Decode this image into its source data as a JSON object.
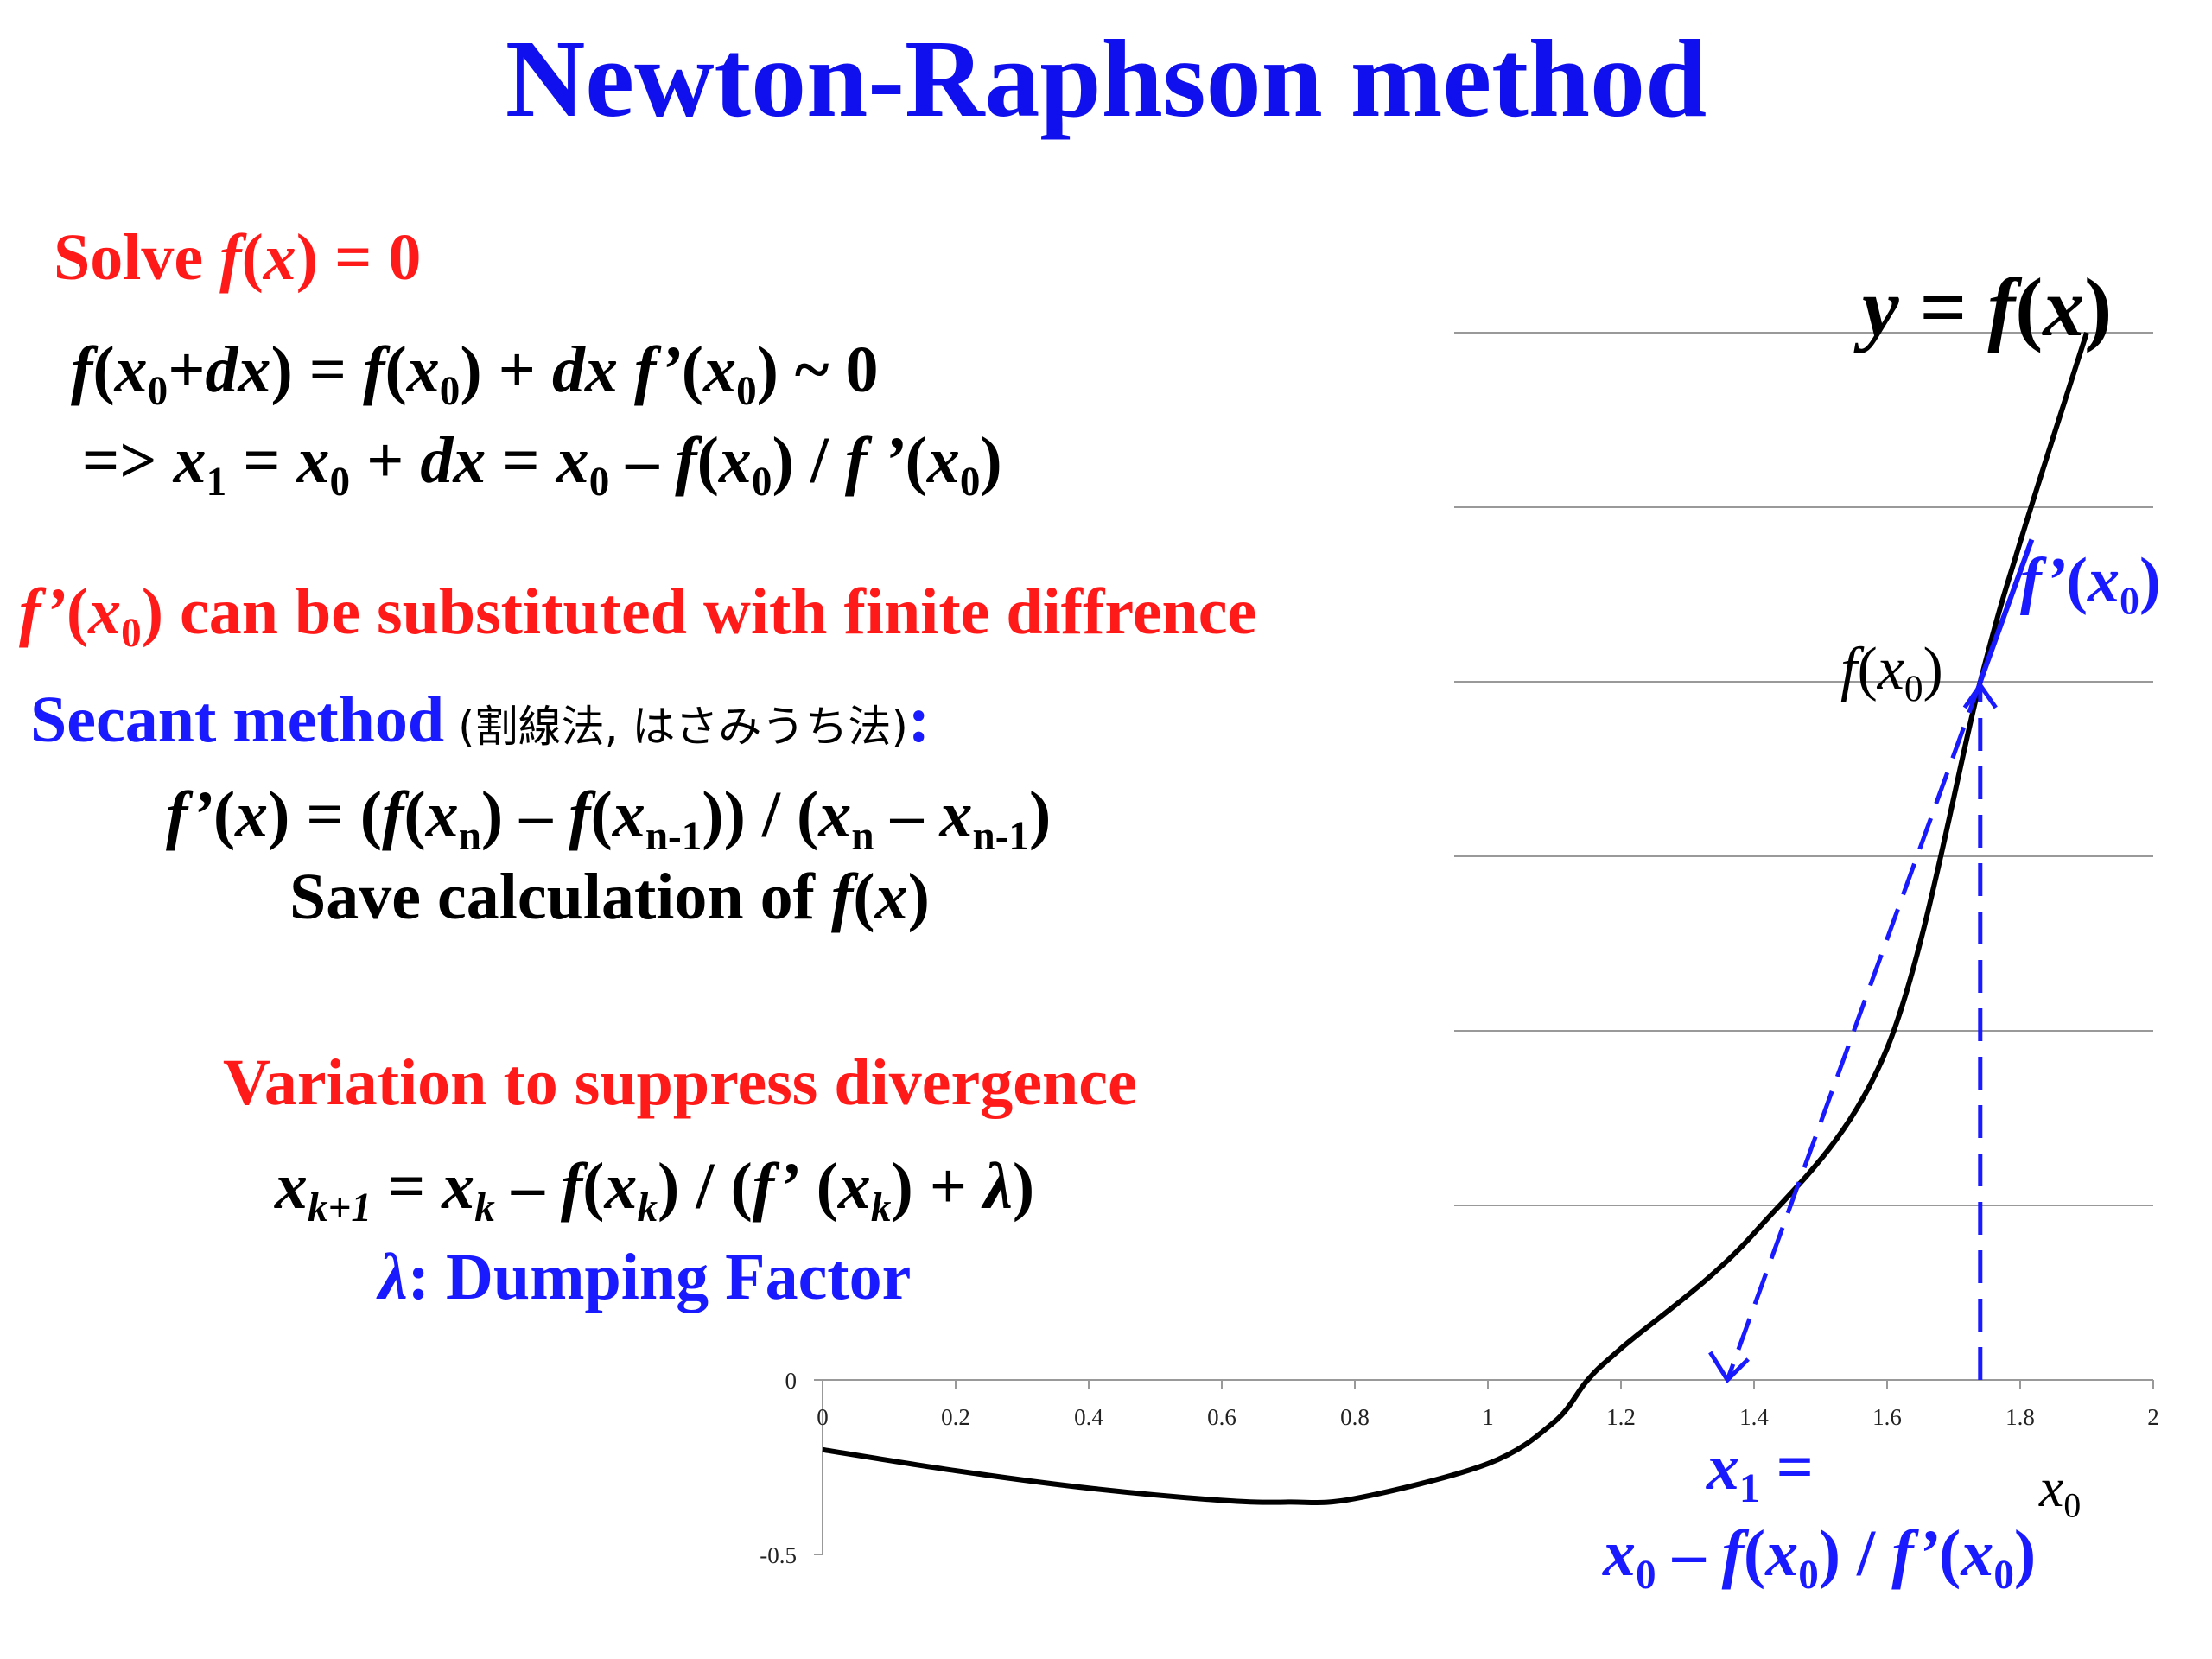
{
  "title": "Newton-Raphson method",
  "solve": {
    "prefix": "Solve ",
    "f": "f",
    "open": "(",
    "x": "x",
    "close": ")",
    "rest": " = 0"
  },
  "eq1": {
    "parts": [
      "f",
      "(",
      "x",
      "0",
      "+",
      "dx",
      ") = ",
      "f",
      "(",
      "x",
      "0",
      ") + ",
      "dx",
      " ",
      "f’",
      "(",
      "x",
      "0",
      ") ~ 0"
    ]
  },
  "eq2": {
    "parts": [
      "=>   ",
      "x",
      "1",
      " = ",
      "x",
      "0",
      " + ",
      "dx",
      " = ",
      "x",
      "0",
      " – ",
      "f",
      "(",
      "x",
      "0",
      ") / ",
      "f ’",
      "(",
      "x",
      "0",
      ")"
    ]
  },
  "fd_line": {
    "fprime": "f’",
    "open": "(",
    "x": "x",
    "sub": "0",
    "rest": ") can be substituted with finite diffrence"
  },
  "secant": {
    "label": "Secant method",
    "jp": " (割線法, はさみうち法)",
    "colon": ":"
  },
  "secant_eq": {
    "parts": [
      "f’",
      "(",
      "x",
      ") = (",
      "f",
      "(",
      "x",
      "n",
      ") – ",
      "f",
      "(",
      "x",
      "n-1",
      ")) / (",
      "x",
      "n",
      " – ",
      "x",
      "n-1",
      ")"
    ]
  },
  "save": {
    "prefix": "Save calculation of ",
    "f": "f",
    "open": "(",
    "x": "x",
    "close": ")"
  },
  "variation": "Variation to suppress divergence",
  "damped_eq": {
    "parts": [
      "x",
      "k+1",
      " = ",
      "x",
      "k",
      " – ",
      "f",
      "(",
      "x",
      "k",
      ") / (",
      "f’",
      " (",
      "x",
      "k",
      ") + ",
      "λ",
      ")"
    ]
  },
  "lambda_line": {
    "lambda": "λ",
    "rest": ": Dumping Factor"
  },
  "chart_labels": {
    "curve": {
      "y": "y",
      "eq": " = ",
      "f": "f",
      "open": "(",
      "x": "x",
      "close": ")"
    },
    "fprime": {
      "f": "f’",
      "open": "(",
      "x": "x",
      "sub": "0",
      "close": ")"
    },
    "fx0": {
      "f": "f",
      "open": "(",
      "x": "x",
      "sub": "0",
      "close": ")"
    },
    "x1": {
      "x": "x",
      "sub": "1",
      "eq": " ="
    },
    "x1_formula": {
      "parts": [
        "x",
        "0",
        " – ",
        "f",
        "(",
        "x",
        "0",
        ") / ",
        "f’",
        "(",
        "x",
        "0",
        ")"
      ]
    },
    "x0": {
      "x": "x",
      "sub": "0"
    }
  },
  "colors": {
    "title": "#1010ee",
    "red": "#ff1a1a",
    "blue": "#1a1aff",
    "curve": "#000000",
    "grid": "#999999"
  },
  "chart_data": {
    "type": "line",
    "x_ticks": [
      "0",
      "0.2",
      "0.4",
      "0.6",
      "0.8",
      "1",
      "1.2",
      "1.4",
      "1.6",
      "1.8",
      "2"
    ],
    "y_ticks": [
      "0",
      "-0.5"
    ],
    "xlim": [
      0,
      2
    ],
    "ylim": [
      -0.5,
      2.5
    ],
    "grid": "horizontal",
    "series": [
      {
        "x": [
          0,
          0.2,
          0.4,
          0.6,
          0.7,
          0.8,
          1.0,
          1.1,
          1.15,
          1.2,
          1.4,
          1.6,
          1.74,
          1.8,
          1.9
        ],
        "y": [
          -0.2,
          -0.26,
          -0.31,
          -0.345,
          -0.35,
          -0.34,
          -0.24,
          -0.12,
          0.0,
          0.09,
          0.42,
          0.95,
          2.0,
          2.4,
          3.0
        ]
      }
    ],
    "newton_step": {
      "x0": 1.74,
      "fx0": 2.0,
      "x1": 1.36
    }
  }
}
